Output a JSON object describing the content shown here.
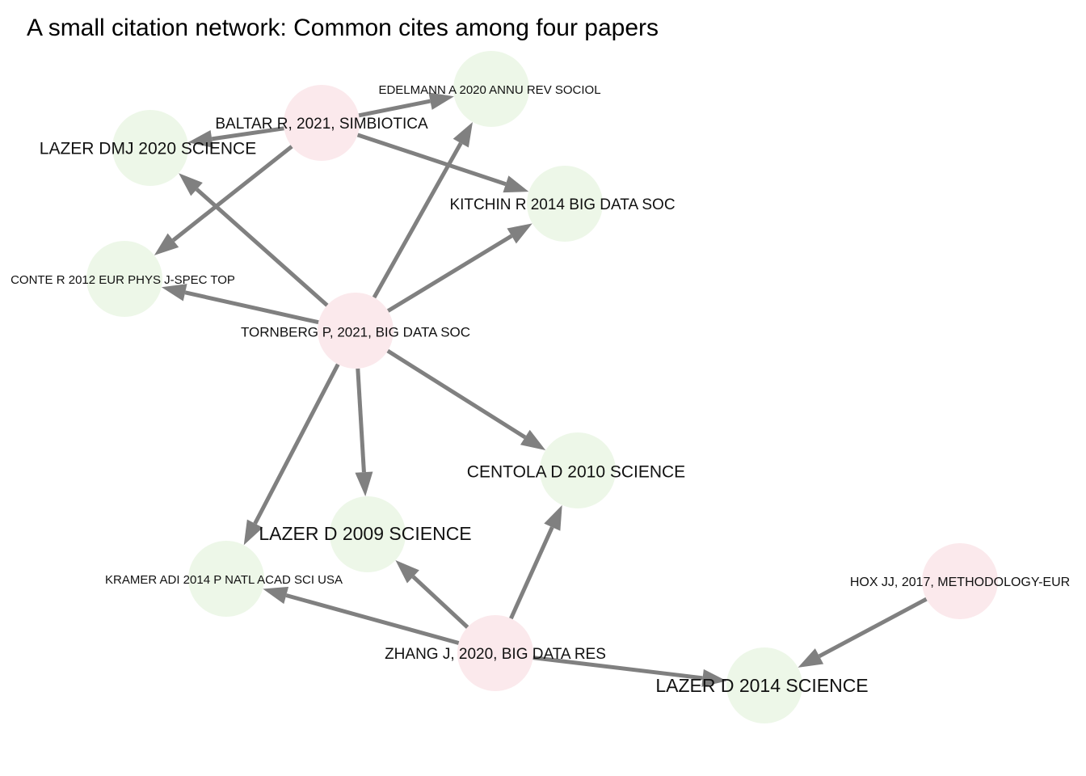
{
  "title": "A small citation network: Common cites among four papers",
  "colors": {
    "citing_node": "#fbe9ec",
    "cited_node": "#edf7e8",
    "edge": "#808080",
    "label": "#111111"
  },
  "nodes": [
    {
      "id": "baltar",
      "label": "BALTAR R, 2021, SIMBIOTICA",
      "kind": "citing"
    },
    {
      "id": "tornberg",
      "label": "TORNBERG P, 2021, BIG DATA SOC",
      "kind": "citing"
    },
    {
      "id": "zhang",
      "label": "ZHANG J, 2020, BIG DATA RES",
      "kind": "citing"
    },
    {
      "id": "hox",
      "label": "HOX JJ, 2017, METHODOLOGY-EUR",
      "kind": "citing"
    },
    {
      "id": "edelmann",
      "label": "EDELMANN A 2020 ANNU REV SOCIOL",
      "kind": "cited"
    },
    {
      "id": "lazer2020",
      "label": "LAZER DMJ 2020 SCIENCE",
      "kind": "cited"
    },
    {
      "id": "kitchin",
      "label": "KITCHIN R 2014 BIG DATA SOC",
      "kind": "cited"
    },
    {
      "id": "conte",
      "label": "CONTE R 2012 EUR PHYS J-SPEC TOP",
      "kind": "cited"
    },
    {
      "id": "centola",
      "label": "CENTOLA D 2010 SCIENCE",
      "kind": "cited"
    },
    {
      "id": "lazer2009",
      "label": "LAZER D 2009 SCIENCE",
      "kind": "cited"
    },
    {
      "id": "kramer",
      "label": "KRAMER ADI 2014 P NATL ACAD SCI USA",
      "kind": "cited"
    },
    {
      "id": "lazer2014",
      "label": "LAZER D 2014 SCIENCE",
      "kind": "cited"
    }
  ],
  "edges": [
    {
      "from": "baltar",
      "to": "edelmann"
    },
    {
      "from": "baltar",
      "to": "lazer2020"
    },
    {
      "from": "baltar",
      "to": "kitchin"
    },
    {
      "from": "baltar",
      "to": "conte"
    },
    {
      "from": "tornberg",
      "to": "lazer2020"
    },
    {
      "from": "tornberg",
      "to": "edelmann"
    },
    {
      "from": "tornberg",
      "to": "kitchin"
    },
    {
      "from": "tornberg",
      "to": "conte"
    },
    {
      "from": "tornberg",
      "to": "centola"
    },
    {
      "from": "tornberg",
      "to": "lazer2009"
    },
    {
      "from": "tornberg",
      "to": "kramer"
    },
    {
      "from": "zhang",
      "to": "centola"
    },
    {
      "from": "zhang",
      "to": "lazer2009"
    },
    {
      "from": "zhang",
      "to": "kramer"
    },
    {
      "from": "zhang",
      "to": "lazer2014"
    },
    {
      "from": "hox",
      "to": "lazer2014"
    }
  ]
}
